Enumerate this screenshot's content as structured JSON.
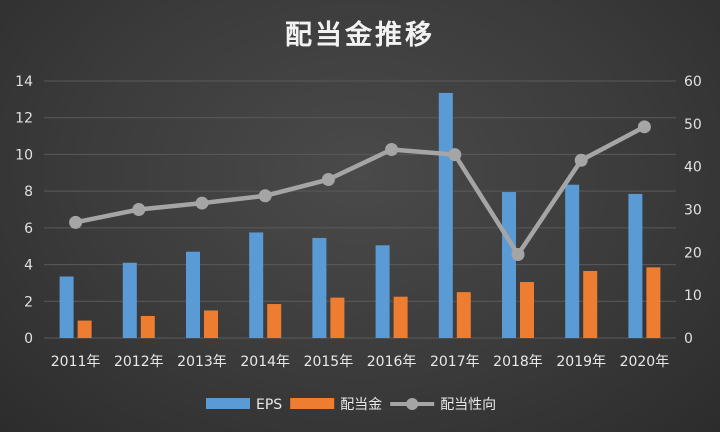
{
  "chart_data": {
    "type": "bar",
    "title": "配当金推移",
    "categories": [
      "2011年",
      "2012年",
      "2013年",
      "2014年",
      "2015年",
      "2016年",
      "2017年",
      "2018年",
      "2019年",
      "2020年"
    ],
    "series": [
      {
        "name": "EPS",
        "type": "bar",
        "axis": "left",
        "color": "#5b9bd5",
        "values": [
          3.35,
          4.1,
          4.7,
          5.75,
          5.45,
          5.05,
          13.35,
          7.95,
          8.35,
          7.85
        ]
      },
      {
        "name": "配当金",
        "type": "bar",
        "axis": "left",
        "color": "#ed7d31",
        "values": [
          0.95,
          1.2,
          1.5,
          1.85,
          2.2,
          2.25,
          2.5,
          3.05,
          3.65,
          3.85
        ]
      },
      {
        "name": "配当性向",
        "type": "line",
        "axis": "right",
        "color": "#a5a5a5",
        "values": [
          27.0,
          30.0,
          31.5,
          33.2,
          37.0,
          44.0,
          42.8,
          19.5,
          41.5,
          49.3
        ]
      }
    ],
    "ylim_left": [
      0,
      14
    ],
    "yticks_left": [
      0,
      2,
      4,
      6,
      8,
      10,
      12,
      14
    ],
    "ylim_right": [
      0,
      60
    ],
    "yticks_right": [
      0,
      10,
      20,
      30,
      40,
      50,
      60
    ],
    "grid": true,
    "legend_position": "bottom"
  }
}
